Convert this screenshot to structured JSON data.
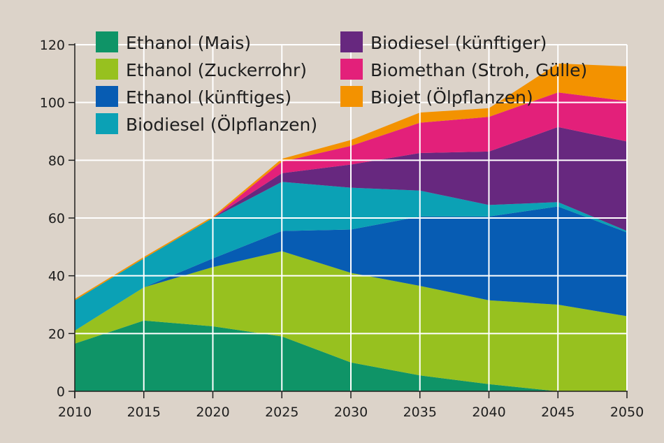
{
  "chart_data": {
    "type": "area",
    "stacked": true,
    "x": [
      2010,
      2015,
      2020,
      2025,
      2030,
      2035,
      2040,
      2045,
      2050
    ],
    "xlim": [
      2010,
      2050
    ],
    "ylim": [
      0,
      120
    ],
    "x_ticks": [
      2010,
      2015,
      2020,
      2025,
      2030,
      2035,
      2040,
      2045,
      2050
    ],
    "y_ticks": [
      0,
      20,
      40,
      60,
      80,
      100,
      120
    ],
    "grid": true,
    "legend_position": "top-left, two columns",
    "series": [
      {
        "name": "Ethanol (Mais)",
        "color": "#0f9467",
        "values": [
          16.5,
          24.5,
          22.5,
          19,
          10,
          5.5,
          2.5,
          0,
          0
        ]
      },
      {
        "name": "Ethanol (Zuckerrohr)",
        "color": "#97c11f",
        "values": [
          4.5,
          11.5,
          20.5,
          29.5,
          31,
          31,
          29,
          30,
          26
        ]
      },
      {
        "name": "Ethanol (künftiges)",
        "color": "#075cb3",
        "values": [
          0,
          0,
          3,
          7,
          15,
          24,
          29,
          34,
          29
        ]
      },
      {
        "name": "Biodiesel (Ölpflanzen)",
        "color": "#0ba1b5",
        "values": [
          10.5,
          10,
          14,
          17,
          14.5,
          9,
          4,
          1.5,
          0.5
        ]
      },
      {
        "name": "Biodiesel (künftiger)",
        "color": "#67287f",
        "values": [
          0,
          0,
          0,
          3,
          8,
          13,
          18.5,
          26,
          31
        ]
      },
      {
        "name": "Biomethan (Stroh, Gülle)",
        "color": "#e3207a",
        "values": [
          0,
          0,
          0,
          4,
          6.5,
          10.5,
          12,
          12,
          14
        ]
      },
      {
        "name": "Biojet (Ölpflanzen)",
        "color": "#f39200",
        "values": [
          0.5,
          0.5,
          0.5,
          1,
          2,
          3.5,
          3,
          10,
          12
        ]
      }
    ]
  }
}
